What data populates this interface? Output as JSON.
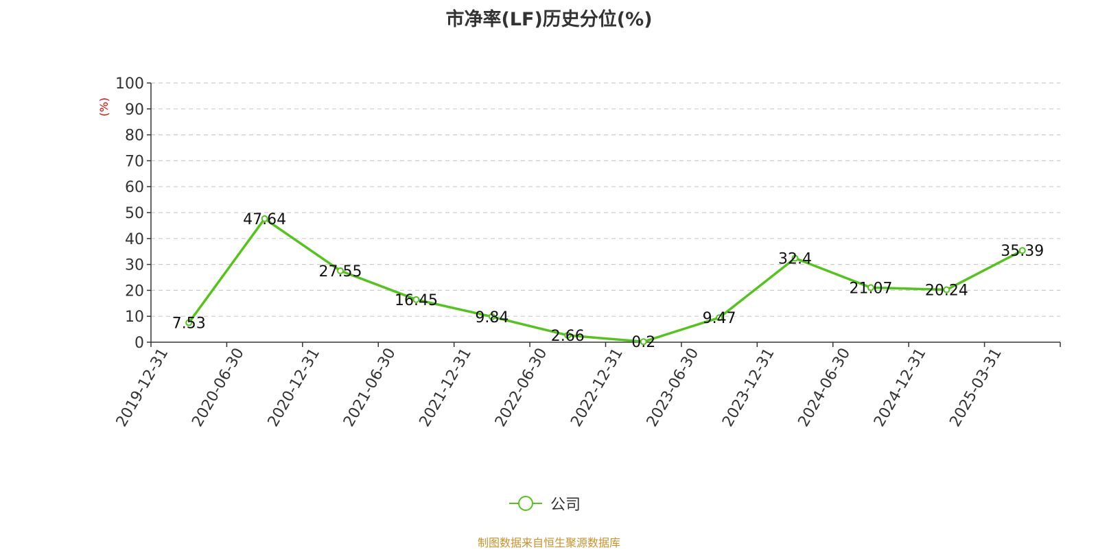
{
  "chart_data": {
    "type": "line",
    "title": "市净率(LF)历史分位(%)",
    "ylabel": "(%)",
    "xlabel": "",
    "categories": [
      "2019-12-31",
      "2020-06-30",
      "2020-12-31",
      "2021-06-30",
      "2021-12-31",
      "2022-06-30",
      "2022-12-31",
      "2023-06-30",
      "2023-12-31",
      "2024-06-30",
      "2024-12-31",
      "2025-03-31"
    ],
    "series": [
      {
        "name": "公司",
        "values": [
          7.53,
          47.64,
          27.55,
          16.45,
          9.84,
          2.66,
          0.2,
          9.47,
          32.4,
          21.07,
          20.24,
          35.39
        ],
        "labels": [
          "7.53",
          "47.64",
          "27.55",
          "16.45",
          "9.84",
          "2.66",
          "0.2",
          "9.47",
          "32.4",
          "21.07",
          "20.24",
          "35.39"
        ],
        "color": "#52c41a"
      }
    ],
    "ylim": [
      0,
      100
    ],
    "yticks": [
      "0",
      "10",
      "20",
      "30",
      "40",
      "50",
      "60",
      "70",
      "80",
      "90",
      "100"
    ],
    "grid": true,
    "legend_position": "bottom-center"
  },
  "source": "制图数据来自恒生聚源数据库",
  "colors": {
    "line": "#52c41a",
    "ylabel": "#e00000",
    "source": "#c8922a"
  }
}
